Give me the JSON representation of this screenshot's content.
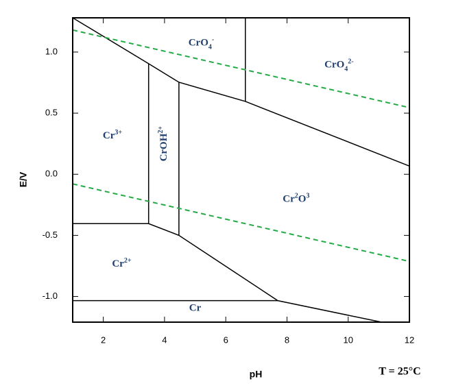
{
  "chart_data": {
    "type": "line",
    "xlabel": "pH",
    "ylabel": "E/V",
    "note": "T = 25°C",
    "xlim": [
      1,
      12
    ],
    "ylim": [
      -1.21,
      1.28
    ],
    "xticks": [
      2,
      4,
      6,
      8,
      10,
      12
    ],
    "yticks": [
      {
        "value": -1.0,
        "label": "-1.0"
      },
      -0.5,
      {
        "value": 0.0,
        "label": "0.0"
      },
      0.5,
      {
        "value": 1.0,
        "label": "1.0"
      }
    ],
    "series": [
      {
        "color": "#000000",
        "dash": false,
        "x": [
          1,
          3.48,
          4.47,
          6.64,
          12
        ],
        "values": [
          1.28,
          0.905,
          0.753,
          0.596,
          0.067
        ]
      },
      {
        "color": "#000000",
        "dash": false,
        "x": [
          6.64,
          6.64
        ],
        "values": [
          1.28,
          0.596
        ]
      },
      {
        "color": "#000000",
        "dash": false,
        "x": [
          3.48,
          3.48
        ],
        "values": [
          0.905,
          -0.404
        ]
      },
      {
        "color": "#000000",
        "dash": false,
        "x": [
          4.47,
          4.47
        ],
        "values": [
          0.753,
          -0.5
        ]
      },
      {
        "color": "#000000",
        "dash": false,
        "x": [
          1,
          3.48,
          4.47,
          7.7,
          11.05
        ],
        "values": [
          -0.404,
          -0.404,
          -0.5,
          -1.034,
          -1.208
        ]
      },
      {
        "color": "#000000",
        "dash": false,
        "x": [
          1,
          7.7
        ],
        "values": [
          -1.034,
          -1.034
        ]
      },
      {
        "color": "#22aa44",
        "dash": true,
        "x": [
          1,
          12
        ],
        "values": [
          1.18,
          0.545
        ]
      },
      {
        "color": "#22aa44",
        "dash": true,
        "x": [
          1,
          12
        ],
        "values": [
          -0.079,
          -0.713
        ]
      }
    ],
    "annotations": [
      {
        "x": 5.2,
        "y": 1.07,
        "parts": [
          {
            "text": "CrO"
          },
          {
            "text": "4",
            "shift": "sub"
          },
          {
            "text": "-",
            "shift": "super"
          }
        ]
      },
      {
        "x": 9.7,
        "y": 0.89,
        "parts": [
          {
            "text": "CrO"
          },
          {
            "text": "4",
            "shift": "sub"
          },
          {
            "text": "2-",
            "shift": "super"
          }
        ]
      },
      {
        "x": 2.3,
        "y": 0.31,
        "parts": [
          {
            "text": "Cr"
          },
          {
            "text": "3+",
            "shift": "super"
          }
        ]
      },
      {
        "x": 4.0,
        "y": 0.25,
        "rotate": -90,
        "parts": [
          {
            "text": "CrOH"
          },
          {
            "text": "2+",
            "shift": "super"
          }
        ]
      },
      {
        "x": 8.3,
        "y": -0.21,
        "parts": [
          {
            "text": "Cr"
          },
          {
            "text": "2",
            "shift": "super"
          },
          {
            "text": "O"
          },
          {
            "text": "3",
            "shift": "super"
          }
        ]
      },
      {
        "x": 2.6,
        "y": -0.74,
        "parts": [
          {
            "text": "Cr"
          },
          {
            "text": "2+",
            "shift": "super"
          }
        ]
      },
      {
        "x": 5.0,
        "y": -1.1,
        "parts": [
          {
            "text": "Cr"
          }
        ]
      }
    ]
  }
}
